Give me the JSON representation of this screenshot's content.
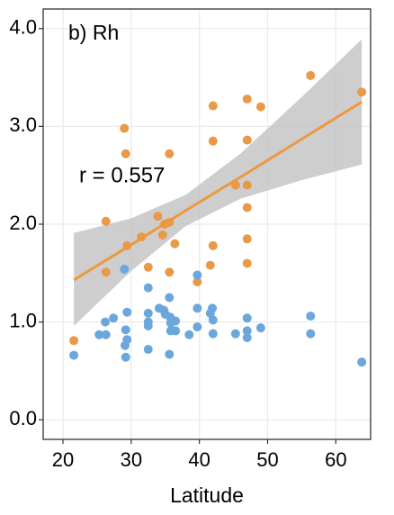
{
  "chart_data": {
    "type": "scatter",
    "panel_label": "b) Rh",
    "annotation": "r = 0.557",
    "x_label": "Latitude",
    "xlim": [
      17.1,
      65.1
    ],
    "xticks": [
      20,
      30,
      40,
      50,
      60
    ],
    "ylim": [
      -0.2,
      4.2
    ],
    "yticks": [
      {
        "value": 0,
        "label": "0.0"
      },
      {
        "value": 1,
        "label": "1.0"
      },
      {
        "value": 2,
        "label": "2.0"
      },
      {
        "value": 3,
        "label": "3.0"
      },
      {
        "value": 4,
        "label": "4.0"
      }
    ],
    "grid": true,
    "series": [
      {
        "color": "#e99a48",
        "x": [
          21.6,
          26.3,
          26.3,
          29.0,
          29.2,
          29.4,
          31.5,
          32.5,
          33.9,
          34.6,
          34.9,
          35.6,
          35.6,
          35.6,
          36.4,
          39.7,
          41.6,
          42.0,
          42.0,
          42.0,
          45.3,
          47.0,
          47.0,
          47.0,
          47.0,
          47.0,
          47.0,
          49.0,
          56.3,
          63.8
        ],
        "values": [
          0.81,
          2.03,
          1.51,
          2.98,
          2.72,
          1.78,
          1.87,
          1.56,
          2.08,
          1.89,
          2.0,
          2.02,
          2.72,
          1.51,
          1.8,
          1.41,
          1.58,
          3.21,
          2.85,
          1.78,
          2.4,
          3.28,
          2.86,
          2.4,
          2.17,
          1.85,
          1.6,
          3.2,
          3.52,
          3.35
        ]
      },
      {
        "color": "#6ba6dc",
        "x": [
          21.6,
          25.3,
          26.2,
          26.3,
          27.4,
          29.0,
          29.1,
          29.2,
          29.2,
          29.4,
          29.4,
          32.5,
          32.5,
          32.5,
          32.5,
          32.5,
          34.1,
          34.8,
          35.0,
          35.6,
          35.7,
          35.8,
          35.8,
          35.6,
          36.5,
          36.5,
          38.5,
          39.7,
          39.7,
          39.7,
          41.6,
          41.9,
          42.0,
          42.0,
          45.3,
          47.0,
          47.0,
          47.0,
          49.0,
          56.3,
          56.3,
          63.8
        ],
        "values": [
          0.66,
          0.87,
          1.0,
          0.87,
          1.04,
          1.54,
          0.76,
          0.92,
          0.64,
          0.82,
          1.1,
          1.35,
          1.09,
          1.0,
          0.96,
          0.72,
          1.14,
          1.12,
          1.08,
          1.25,
          1.05,
          0.99,
          0.91,
          0.67,
          1.01,
          0.91,
          0.87,
          1.48,
          1.14,
          0.95,
          1.09,
          1.14,
          1.02,
          0.88,
          0.88,
          1.04,
          0.91,
          0.84,
          0.94,
          1.06,
          0.88,
          0.59
        ]
      }
    ],
    "fit": {
      "color": "#ee983c",
      "band_color": "#bdbdbd",
      "x": [
        21.6,
        30,
        38,
        46,
        55,
        63.8
      ],
      "values": [
        1.43,
        1.79,
        2.14,
        2.48,
        2.87,
        3.25
      ],
      "lower": [
        0.96,
        1.52,
        1.98,
        2.26,
        2.45,
        2.61
      ],
      "upper": [
        1.91,
        2.06,
        2.3,
        2.72,
        3.3,
        3.89
      ]
    }
  }
}
